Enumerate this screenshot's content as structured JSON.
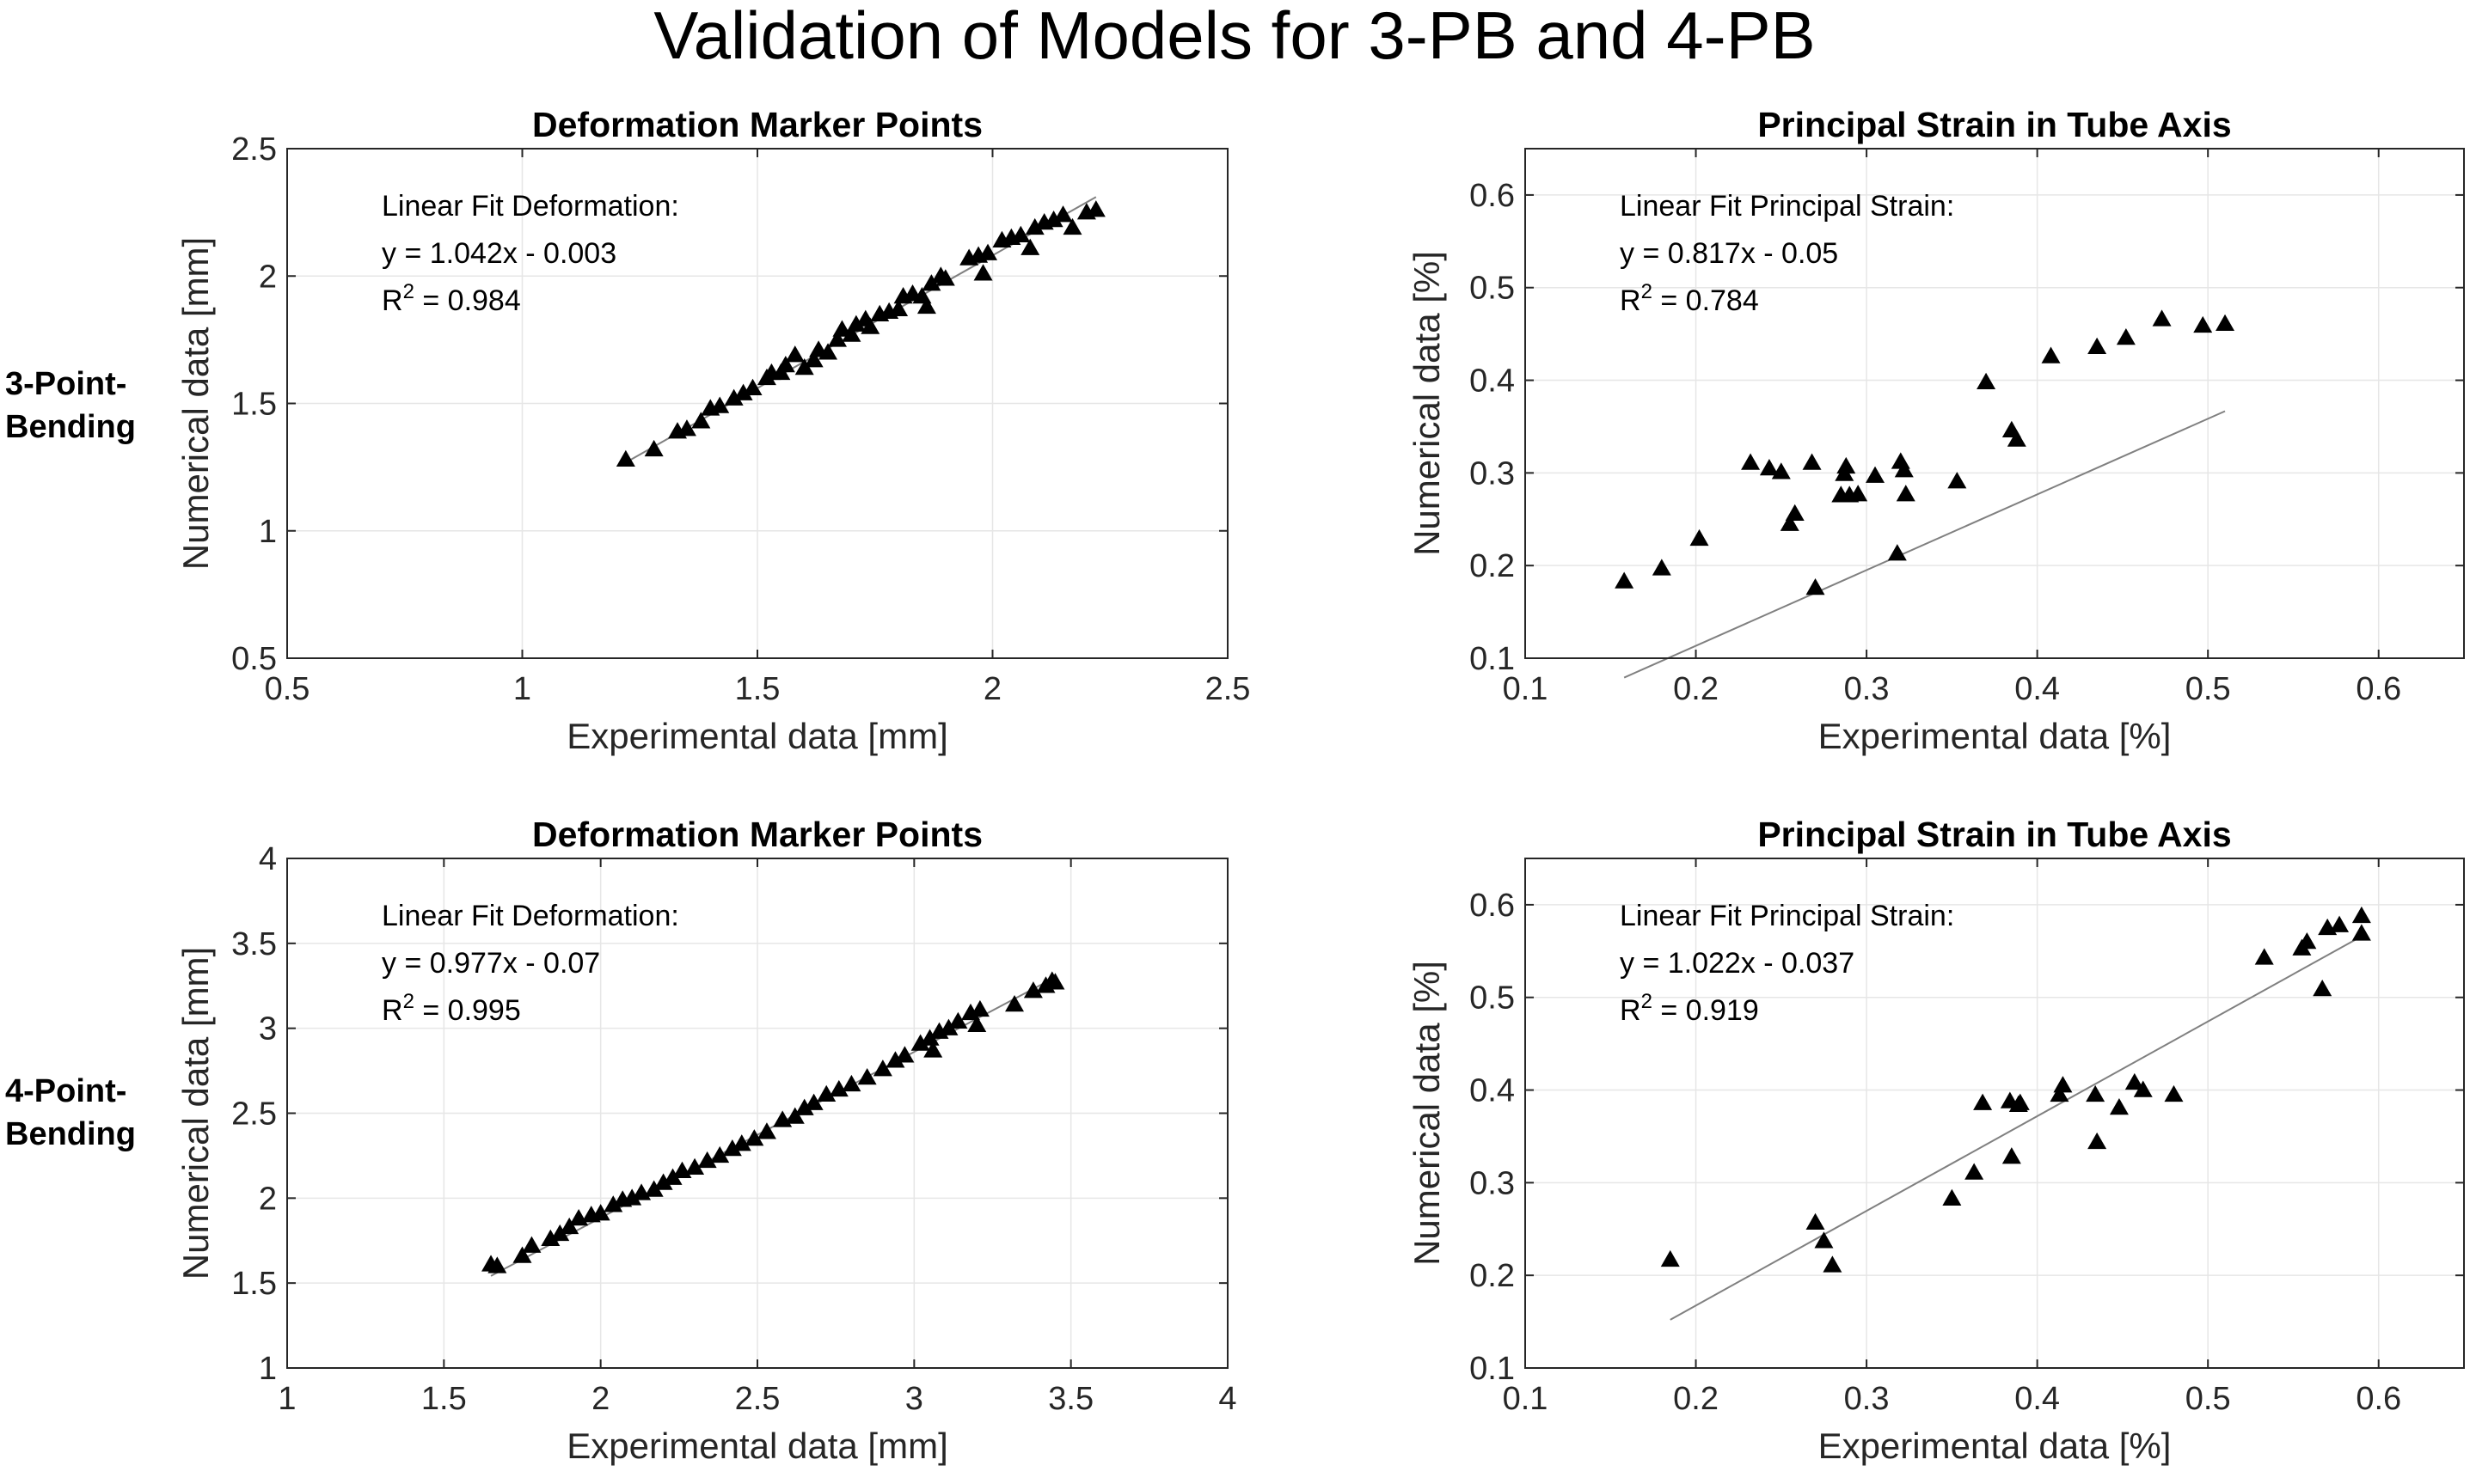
{
  "figure": {
    "title": "Validation of Models for 3-PB and 4-PB",
    "row_labels": [
      [
        "3-Point-",
        "Bending"
      ],
      [
        "4-Point-",
        "Bending"
      ]
    ],
    "colors": {
      "background": "#ffffff",
      "axis": "#262626",
      "grid": "#e6e6e6",
      "marker": "#000000",
      "fit_line": "#808080"
    }
  },
  "chart_data": [
    {
      "id": "tl",
      "type": "scatter",
      "title": "Deformation Marker Points",
      "xlabel": "Experimental data [mm]",
      "ylabel": "Numerical data [mm]",
      "xlim": [
        0.5,
        2.5
      ],
      "ylim": [
        0.5,
        2.5
      ],
      "xticks": [
        0.5,
        1,
        1.5,
        2,
        2.5
      ],
      "yticks": [
        0.5,
        1,
        1.5,
        2,
        2.5
      ],
      "xtick_labels": [
        "0.5",
        "1",
        "1.5",
        "2",
        "2.5"
      ],
      "ytick_labels": [
        "0.5",
        "1",
        "1.5",
        "2",
        "2.5"
      ],
      "grid": true,
      "annotation": {
        "label": "Linear Fit Deformation:",
        "equation": "y = 1.042x - 0.003",
        "r2_prefix": "R",
        "r2_exp": "2",
        "r2_value": " = 0.984"
      },
      "fit": {
        "slope": 1.042,
        "intercept": -0.003,
        "x_range": [
          1.22,
          2.22
        ]
      },
      "points": [
        [
          1.22,
          1.28
        ],
        [
          1.28,
          1.32
        ],
        [
          1.33,
          1.39
        ],
        [
          1.35,
          1.4
        ],
        [
          1.38,
          1.43
        ],
        [
          1.4,
          1.48
        ],
        [
          1.42,
          1.49
        ],
        [
          1.45,
          1.52
        ],
        [
          1.47,
          1.54
        ],
        [
          1.49,
          1.56
        ],
        [
          1.52,
          1.6
        ],
        [
          1.53,
          1.62
        ],
        [
          1.55,
          1.62
        ],
        [
          1.56,
          1.65
        ],
        [
          1.58,
          1.69
        ],
        [
          1.6,
          1.64
        ],
        [
          1.62,
          1.67
        ],
        [
          1.63,
          1.71
        ],
        [
          1.65,
          1.7
        ],
        [
          1.67,
          1.75
        ],
        [
          1.68,
          1.79
        ],
        [
          1.7,
          1.77
        ],
        [
          1.71,
          1.81
        ],
        [
          1.73,
          1.83
        ],
        [
          1.74,
          1.8
        ],
        [
          1.76,
          1.85
        ],
        [
          1.78,
          1.86
        ],
        [
          1.8,
          1.87
        ],
        [
          1.81,
          1.92
        ],
        [
          1.83,
          1.93
        ],
        [
          1.85,
          1.92
        ],
        [
          1.86,
          1.88
        ],
        [
          1.87,
          1.97
        ],
        [
          1.89,
          2.0
        ],
        [
          1.9,
          1.99
        ],
        [
          1.95,
          2.07
        ],
        [
          1.97,
          2.08
        ],
        [
          1.98,
          2.01
        ],
        [
          1.99,
          2.09
        ],
        [
          2.02,
          2.14
        ],
        [
          2.04,
          2.15
        ],
        [
          2.06,
          2.16
        ],
        [
          2.08,
          2.11
        ],
        [
          2.09,
          2.19
        ],
        [
          2.11,
          2.21
        ],
        [
          2.13,
          2.22
        ],
        [
          2.15,
          2.24
        ],
        [
          2.17,
          2.19
        ],
        [
          2.2,
          2.25
        ],
        [
          2.22,
          2.26
        ]
      ]
    },
    {
      "id": "tr",
      "type": "scatter",
      "title": "Principal Strain in Tube Axis",
      "xlabel": "Experimental data [%]",
      "ylabel": "Numerical data [%]",
      "xlim": [
        0.1,
        0.65
      ],
      "ylim": [
        0.1,
        0.65
      ],
      "xticks": [
        0.1,
        0.2,
        0.3,
        0.4,
        0.5,
        0.6
      ],
      "yticks": [
        0.1,
        0.2,
        0.3,
        0.4,
        0.5,
        0.6
      ],
      "xtick_labels": [
        "0.1",
        "0.2",
        "0.3",
        "0.4",
        "0.5",
        "0.6"
      ],
      "ytick_labels": [
        "0.1",
        "0.2",
        "0.3",
        "0.4",
        "0.5",
        "0.6"
      ],
      "grid": true,
      "annotation": {
        "label": "Linear Fit Principal Strain:",
        "equation": "y = 0.817x - 0.05",
        "r2_prefix": "R",
        "r2_exp": "2",
        "r2_value": " = 0.784"
      },
      "fit": {
        "slope": 0.817,
        "intercept": -0.05,
        "x_range": [
          0.158,
          0.51
        ]
      },
      "points": [
        [
          0.158,
          0.183
        ],
        [
          0.18,
          0.197
        ],
        [
          0.202,
          0.229
        ],
        [
          0.232,
          0.311
        ],
        [
          0.243,
          0.305
        ],
        [
          0.25,
          0.301
        ],
        [
          0.255,
          0.245
        ],
        [
          0.258,
          0.256
        ],
        [
          0.268,
          0.311
        ],
        [
          0.27,
          0.176
        ],
        [
          0.285,
          0.276
        ],
        [
          0.287,
          0.299
        ],
        [
          0.288,
          0.307
        ],
        [
          0.29,
          0.276
        ],
        [
          0.295,
          0.277
        ],
        [
          0.305,
          0.297
        ],
        [
          0.318,
          0.213
        ],
        [
          0.32,
          0.312
        ],
        [
          0.322,
          0.303
        ],
        [
          0.323,
          0.277
        ],
        [
          0.353,
          0.291
        ],
        [
          0.37,
          0.398
        ],
        [
          0.385,
          0.346
        ],
        [
          0.388,
          0.336
        ],
        [
          0.408,
          0.426
        ],
        [
          0.435,
          0.436
        ],
        [
          0.452,
          0.446
        ],
        [
          0.473,
          0.466
        ],
        [
          0.497,
          0.459
        ],
        [
          0.51,
          0.461
        ]
      ]
    },
    {
      "id": "bl",
      "type": "scatter",
      "title": "Deformation Marker Points",
      "xlabel": "Experimental data [mm]",
      "ylabel": "Numerical data [mm]",
      "xlim": [
        1,
        4
      ],
      "ylim": [
        1,
        4
      ],
      "xticks": [
        1,
        1.5,
        2,
        2.5,
        3,
        3.5,
        4
      ],
      "yticks": [
        1,
        1.5,
        2,
        2.5,
        3,
        3.5,
        4
      ],
      "xtick_labels": [
        "1",
        "1.5",
        "2",
        "2.5",
        "3",
        "3.5",
        "4"
      ],
      "ytick_labels": [
        "1",
        "1.5",
        "2",
        "2.5",
        "3",
        "3.5",
        "4"
      ],
      "grid": true,
      "annotation": {
        "label": "Linear Fit Deformation:",
        "equation": "y = 0.977x - 0.07",
        "r2_prefix": "R",
        "r2_exp": "2",
        "r2_value": " = 0.995"
      },
      "fit": {
        "slope": 0.977,
        "intercept": -0.07,
        "x_range": [
          1.65,
          3.45
        ]
      },
      "points": [
        [
          1.65,
          1.61
        ],
        [
          1.67,
          1.6
        ],
        [
          1.75,
          1.66
        ],
        [
          1.78,
          1.72
        ],
        [
          1.84,
          1.76
        ],
        [
          1.87,
          1.79
        ],
        [
          1.9,
          1.83
        ],
        [
          1.93,
          1.88
        ],
        [
          1.97,
          1.9
        ],
        [
          2.0,
          1.91
        ],
        [
          2.04,
          1.96
        ],
        [
          2.07,
          1.99
        ],
        [
          2.1,
          2.0
        ],
        [
          2.13,
          2.03
        ],
        [
          2.17,
          2.05
        ],
        [
          2.2,
          2.09
        ],
        [
          2.23,
          2.12
        ],
        [
          2.26,
          2.16
        ],
        [
          2.3,
          2.18
        ],
        [
          2.34,
          2.22
        ],
        [
          2.38,
          2.25
        ],
        [
          2.42,
          2.29
        ],
        [
          2.45,
          2.32
        ],
        [
          2.49,
          2.35
        ],
        [
          2.53,
          2.39
        ],
        [
          2.58,
          2.46
        ],
        [
          2.62,
          2.48
        ],
        [
          2.65,
          2.53
        ],
        [
          2.68,
          2.56
        ],
        [
          2.72,
          2.61
        ],
        [
          2.76,
          2.64
        ],
        [
          2.8,
          2.67
        ],
        [
          2.85,
          2.71
        ],
        [
          2.9,
          2.76
        ],
        [
          2.94,
          2.81
        ],
        [
          2.97,
          2.84
        ],
        [
          3.02,
          2.91
        ],
        [
          3.05,
          2.94
        ],
        [
          3.06,
          2.87
        ],
        [
          3.08,
          2.98
        ],
        [
          3.11,
          3.0
        ],
        [
          3.14,
          3.04
        ],
        [
          3.18,
          3.09
        ],
        [
          3.2,
          3.02
        ],
        [
          3.21,
          3.11
        ],
        [
          3.32,
          3.14
        ],
        [
          3.38,
          3.22
        ],
        [
          3.42,
          3.25
        ],
        [
          3.44,
          3.28
        ],
        [
          3.45,
          3.27
        ]
      ]
    },
    {
      "id": "br",
      "type": "scatter",
      "title": "Principal Strain in Tube Axis",
      "xlabel": "Experimental data [%]",
      "ylabel": "Numerical data [%]",
      "xlim": [
        0.1,
        0.65
      ],
      "ylim": [
        0.1,
        0.65
      ],
      "xticks": [
        0.1,
        0.2,
        0.3,
        0.4,
        0.5,
        0.6
      ],
      "yticks": [
        0.1,
        0.2,
        0.3,
        0.4,
        0.5,
        0.6
      ],
      "xtick_labels": [
        "0.1",
        "0.2",
        "0.3",
        "0.4",
        "0.5",
        "0.6"
      ],
      "ytick_labels": [
        "0.1",
        "0.2",
        "0.3",
        "0.4",
        "0.5",
        "0.6"
      ],
      "grid": true,
      "annotation": {
        "label": "Linear Fit Principal Strain:",
        "equation": "y = 1.022x - 0.037",
        "r2_prefix": "R",
        "r2_exp": "2",
        "r2_value": " = 0.919"
      },
      "fit": {
        "slope": 1.022,
        "intercept": -0.037,
        "x_range": [
          0.185,
          0.59
        ]
      },
      "points": [
        [
          0.185,
          0.217
        ],
        [
          0.27,
          0.257
        ],
        [
          0.275,
          0.237
        ],
        [
          0.28,
          0.211
        ],
        [
          0.35,
          0.283
        ],
        [
          0.363,
          0.311
        ],
        [
          0.368,
          0.386
        ],
        [
          0.384,
          0.388
        ],
        [
          0.385,
          0.328
        ],
        [
          0.389,
          0.384
        ],
        [
          0.39,
          0.386
        ],
        [
          0.413,
          0.395
        ],
        [
          0.415,
          0.405
        ],
        [
          0.434,
          0.395
        ],
        [
          0.435,
          0.344
        ],
        [
          0.448,
          0.381
        ],
        [
          0.457,
          0.408
        ],
        [
          0.462,
          0.4
        ],
        [
          0.48,
          0.395
        ],
        [
          0.533,
          0.543
        ],
        [
          0.555,
          0.553
        ],
        [
          0.558,
          0.56
        ],
        [
          0.567,
          0.509
        ],
        [
          0.57,
          0.575
        ],
        [
          0.577,
          0.578
        ],
        [
          0.59,
          0.588
        ],
        [
          0.59,
          0.569
        ]
      ]
    }
  ]
}
